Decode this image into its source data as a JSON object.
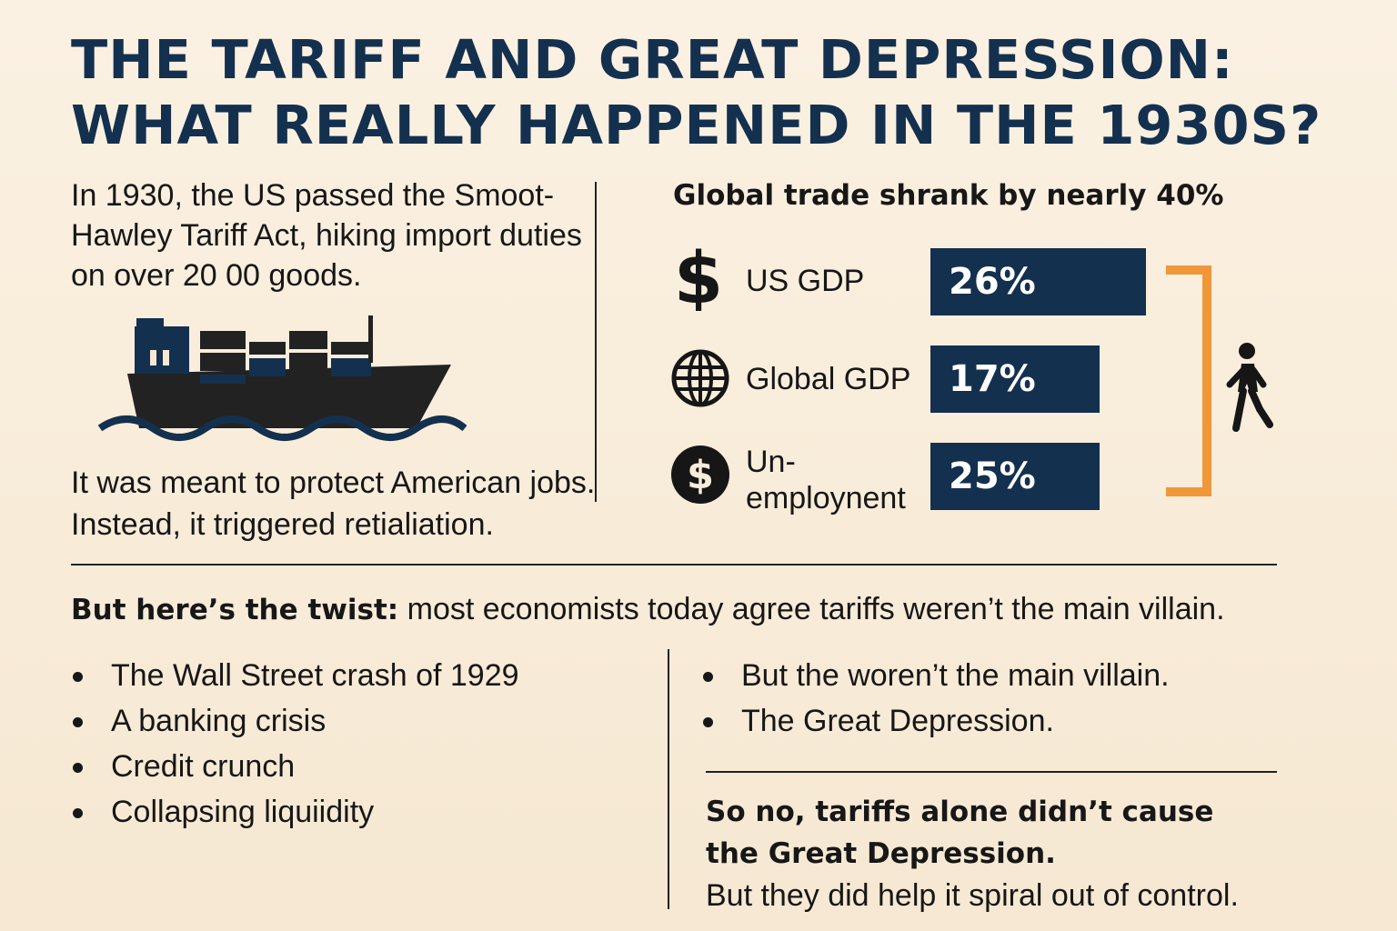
{
  "title": {
    "line1": "THE TARIFF AND GREAT DEPRESSION:",
    "line2": "WHAT REALLY HAPPENED IN THE 1930S?"
  },
  "intro": "In 1930, the US passed the Smoot-Hawley Tariff Act, hiking import duties on over 20 00 goods.",
  "ship_icon": "cargo-ship-icon",
  "outro": "It was meant to protect American jobs. Instead, it triggered retialiation.",
  "stats": {
    "heading": "Global trade shrank by nearly 40%",
    "metrics": [
      {
        "label": "US GDP",
        "value": "26%",
        "icon": "dollar-sign-icon"
      },
      {
        "label": "Global GDP",
        "value": "17%",
        "icon": "globe-icon"
      },
      {
        "label_line1": "Un-",
        "label_line2": "employnent",
        "value": "25%",
        "icon": "dollar-coin-icon"
      }
    ],
    "bracket_color": "#f0973a",
    "bar_color": "#14304f",
    "person_icon": "walking-person-icon"
  },
  "twist": {
    "bold": "But here’s the twist:",
    "text": " most economists today agree tariffs weren’t the main villain."
  },
  "causes_left": [
    "The Wall Street crash of 1929",
    "A banking crisis",
    "Credit crunch",
    "Collapsing liquiidity"
  ],
  "causes_right": [
    "But the woren’t the main villain.",
    "The Great Depression."
  ],
  "conclusion": {
    "bold_line1": "So no, tariffs alone didn’t cause",
    "bold_line2": "the Great Depression.",
    "text": "But they did help it spiral out of control."
  },
  "colors": {
    "title": "#14304f",
    "background": "#f8ecda",
    "accent": "#f0973a",
    "wave": "#14304f"
  }
}
